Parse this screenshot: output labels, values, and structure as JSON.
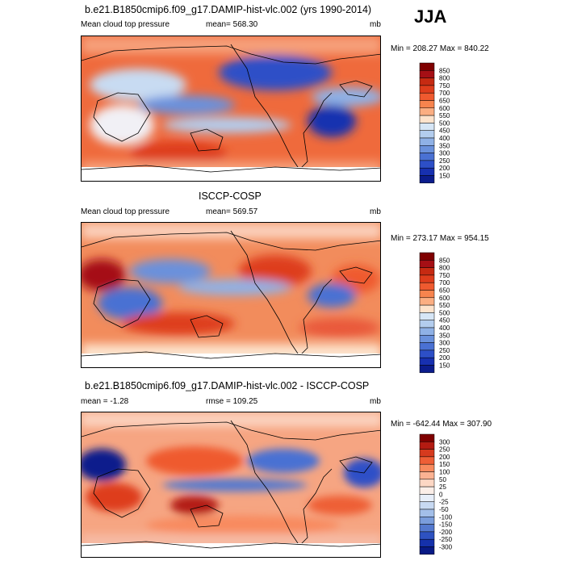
{
  "season": "JJA",
  "panels": [
    {
      "id": "model",
      "title": "b.e21.B1850cmip6.f09_g17.DAMIP-hist-vlc.002 (yrs 1990-2014)",
      "left_label": "Mean cloud top pressure",
      "center_label": "mean= 568.30",
      "units": "mb",
      "minmax": "Min = 208.27 Max = 840.22",
      "colorbar_labels": [
        "850",
        "800",
        "750",
        "700",
        "650",
        "600",
        "550",
        "500",
        "450",
        "400",
        "350",
        "300",
        "250",
        "200",
        "150"
      ]
    },
    {
      "id": "obs",
      "title": "ISCCP-COSP",
      "left_label": "Mean cloud top pressure",
      "center_label": "mean= 569.57",
      "units": "mb",
      "minmax": "Min = 273.17 Max = 954.15",
      "colorbar_labels": [
        "850",
        "800",
        "750",
        "700",
        "650",
        "600",
        "550",
        "500",
        "450",
        "400",
        "350",
        "300",
        "250",
        "200",
        "150"
      ]
    },
    {
      "id": "diff",
      "title": "b.e21.B1850cmip6.f09_g17.DAMIP-hist-vlc.002 - ISCCP-COSP",
      "left_label": "mean =  -1.28",
      "center_label": "rmse = 109.25",
      "units": "mb",
      "minmax": "Min = -642.44 Max = 307.90",
      "colorbar_labels": [
        "300",
        "250",
        "200",
        "150",
        "100",
        "50",
        "25",
        "0",
        "-25",
        "-50",
        "-100",
        "-150",
        "-200",
        "-250",
        "-300"
      ]
    }
  ],
  "colors": {
    "seq": [
      "#7f0000",
      "#a50f15",
      "#c62a12",
      "#de3d1c",
      "#ef5a2f",
      "#f7844e",
      "#fbae82",
      "#fde3cc",
      "#d6e6f6",
      "#b3cdee",
      "#8fb1e6",
      "#6a91dc",
      "#4a71d3",
      "#2d4fc7",
      "#1730b0",
      "#0b1c8c"
    ],
    "div": [
      "#7f0000",
      "#b31b12",
      "#d63a1e",
      "#ee5e36",
      "#f88a5e",
      "#fbb292",
      "#fdd7c4",
      "#fbeee8",
      "#e7eef9",
      "#c7d9f2",
      "#a3bfe9",
      "#7a9ddc",
      "#5479cf",
      "#2e52c1",
      "#1531ab",
      "#081a86"
    ]
  }
}
